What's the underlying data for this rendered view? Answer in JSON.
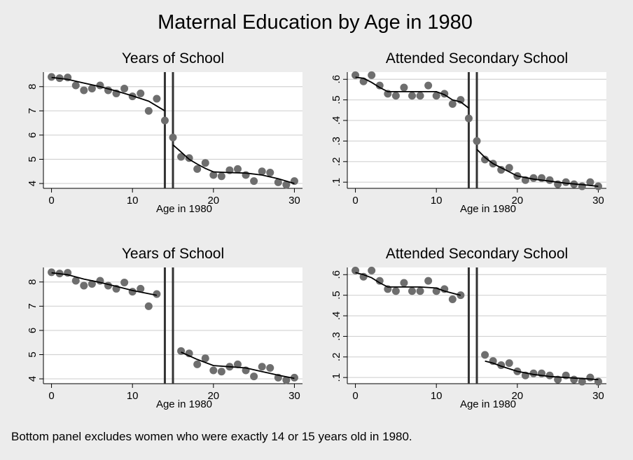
{
  "title": "Maternal Education by Age in 1980",
  "note": "Bottom panel excludes women who were exactly 14 or 15 years old in 1980.",
  "chart_data": [
    {
      "type": "scatter",
      "title": "Years of School",
      "xlabel": "Age in 1980",
      "ylabel": "",
      "xlim": [
        -1,
        31
      ],
      "ylim": [
        3.8,
        8.6
      ],
      "xticks": [
        0,
        10,
        20,
        30
      ],
      "yticks": [
        4,
        5,
        6,
        7,
        8
      ],
      "ytick_labels": [
        "4",
        "5",
        "6",
        "7",
        "8"
      ],
      "cutoffs": [
        14,
        15
      ],
      "x": [
        0,
        1,
        2,
        3,
        4,
        5,
        6,
        7,
        8,
        9,
        10,
        11,
        12,
        13,
        14,
        15,
        16,
        17,
        18,
        19,
        20,
        21,
        22,
        23,
        24,
        25,
        26,
        27,
        28,
        29,
        30
      ],
      "y": [
        8.4,
        8.35,
        8.38,
        8.05,
        7.85,
        7.92,
        8.05,
        7.85,
        7.72,
        7.92,
        7.6,
        7.72,
        7.0,
        7.5,
        6.6,
        5.9,
        5.1,
        5.05,
        4.6,
        4.85,
        4.35,
        4.3,
        4.55,
        4.6,
        4.35,
        4.1,
        4.5,
        4.45,
        4.05,
        3.95,
        4.1
      ],
      "fit": [
        {
          "x": [
            0,
            2,
            4,
            6,
            8,
            10,
            12,
            14
          ],
          "y": [
            8.38,
            8.3,
            8.15,
            8.0,
            7.82,
            7.62,
            7.4,
            7.0
          ]
        },
        {
          "x": [
            15,
            16,
            17,
            18,
            19,
            20,
            22,
            24,
            26,
            28,
            30
          ],
          "y": [
            5.6,
            5.3,
            5.0,
            4.8,
            4.62,
            4.48,
            4.45,
            4.43,
            4.35,
            4.2,
            4.0
          ]
        }
      ]
    },
    {
      "type": "scatter",
      "title": "Attended Secondary School",
      "xlabel": "Age in 1980",
      "ylabel": "",
      "xlim": [
        -1,
        31
      ],
      "ylim": [
        0.07,
        0.635
      ],
      "xticks": [
        0,
        10,
        20,
        30
      ],
      "yticks": [
        0.1,
        0.2,
        0.3,
        0.4,
        0.5,
        0.6
      ],
      "ytick_labels": [
        ".1",
        ".2",
        ".3",
        ".4",
        ".5",
        ".6"
      ],
      "cutoffs": [
        14,
        15
      ],
      "x": [
        0,
        1,
        2,
        3,
        4,
        5,
        6,
        7,
        8,
        9,
        10,
        11,
        12,
        13,
        14,
        15,
        16,
        17,
        18,
        19,
        20,
        21,
        22,
        23,
        24,
        25,
        26,
        27,
        28,
        29,
        30
      ],
      "y": [
        0.62,
        0.59,
        0.62,
        0.57,
        0.53,
        0.52,
        0.56,
        0.52,
        0.52,
        0.57,
        0.52,
        0.53,
        0.48,
        0.5,
        0.41,
        0.3,
        0.21,
        0.19,
        0.16,
        0.17,
        0.13,
        0.11,
        0.12,
        0.12,
        0.11,
        0.09,
        0.1,
        0.09,
        0.08,
        0.1,
        0.08
      ],
      "fit": [
        {
          "x": [
            0,
            1,
            2,
            3,
            4,
            6,
            8,
            10,
            11,
            12,
            13,
            14
          ],
          "y": [
            0.61,
            0.605,
            0.585,
            0.56,
            0.54,
            0.54,
            0.54,
            0.54,
            0.525,
            0.5,
            0.49,
            0.46
          ]
        },
        {
          "x": [
            15,
            16,
            17,
            18,
            19,
            20,
            22,
            24,
            26,
            28,
            30
          ],
          "y": [
            0.26,
            0.22,
            0.19,
            0.17,
            0.15,
            0.13,
            0.115,
            0.105,
            0.095,
            0.088,
            0.08
          ]
        }
      ]
    },
    {
      "type": "scatter",
      "title": "Years of School",
      "xlabel": "Age in 1980",
      "ylabel": "",
      "xlim": [
        -1,
        31
      ],
      "ylim": [
        3.8,
        8.6
      ],
      "xticks": [
        0,
        10,
        20,
        30
      ],
      "yticks": [
        4,
        5,
        6,
        7,
        8
      ],
      "ytick_labels": [
        "4",
        "5",
        "6",
        "7",
        "8"
      ],
      "cutoffs": [
        14,
        15
      ],
      "x": [
        0,
        1,
        2,
        3,
        4,
        5,
        6,
        7,
        8,
        9,
        10,
        11,
        12,
        13,
        16,
        17,
        18,
        19,
        20,
        21,
        22,
        23,
        24,
        25,
        26,
        27,
        28,
        29,
        30
      ],
      "y": [
        8.4,
        8.35,
        8.38,
        8.05,
        7.85,
        7.92,
        8.05,
        7.85,
        7.72,
        7.98,
        7.6,
        7.72,
        7.0,
        7.5,
        5.15,
        5.05,
        4.6,
        4.85,
        4.35,
        4.3,
        4.5,
        4.6,
        4.35,
        4.1,
        4.5,
        4.45,
        4.05,
        3.95,
        4.05
      ],
      "fit": [
        {
          "x": [
            0,
            2,
            4,
            6,
            8,
            10,
            13
          ],
          "y": [
            8.38,
            8.3,
            8.12,
            7.98,
            7.82,
            7.65,
            7.45
          ]
        },
        {
          "x": [
            16,
            18,
            20,
            22,
            24,
            26,
            28,
            30
          ],
          "y": [
            5.1,
            4.8,
            4.55,
            4.5,
            4.45,
            4.3,
            4.15,
            4.02
          ]
        }
      ]
    },
    {
      "type": "scatter",
      "title": "Attended Secondary School",
      "xlabel": "Age in 1980",
      "ylabel": "",
      "xlim": [
        -1,
        31
      ],
      "ylim": [
        0.07,
        0.635
      ],
      "xticks": [
        0,
        10,
        20,
        30
      ],
      "yticks": [
        0.1,
        0.2,
        0.3,
        0.4,
        0.5,
        0.6
      ],
      "ytick_labels": [
        ".1",
        ".2",
        ".3",
        ".4",
        ".5",
        ".6"
      ],
      "cutoffs": [
        14,
        15
      ],
      "x": [
        0,
        1,
        2,
        3,
        4,
        5,
        6,
        7,
        8,
        9,
        10,
        11,
        12,
        13,
        16,
        17,
        18,
        19,
        20,
        21,
        22,
        23,
        24,
        25,
        26,
        27,
        28,
        29,
        30
      ],
      "y": [
        0.62,
        0.59,
        0.62,
        0.57,
        0.53,
        0.52,
        0.56,
        0.52,
        0.52,
        0.57,
        0.52,
        0.53,
        0.48,
        0.5,
        0.21,
        0.18,
        0.16,
        0.17,
        0.13,
        0.11,
        0.12,
        0.12,
        0.11,
        0.09,
        0.11,
        0.09,
        0.08,
        0.1,
        0.08
      ],
      "fit": [
        {
          "x": [
            0,
            1,
            2,
            3,
            4,
            6,
            8,
            10,
            11,
            12,
            13
          ],
          "y": [
            0.61,
            0.6,
            0.585,
            0.56,
            0.54,
            0.54,
            0.54,
            0.535,
            0.52,
            0.51,
            0.5
          ]
        },
        {
          "x": [
            16,
            17,
            18,
            20,
            22,
            24,
            26,
            28,
            30
          ],
          "y": [
            0.18,
            0.17,
            0.155,
            0.13,
            0.115,
            0.105,
            0.1,
            0.095,
            0.09
          ]
        }
      ]
    }
  ]
}
